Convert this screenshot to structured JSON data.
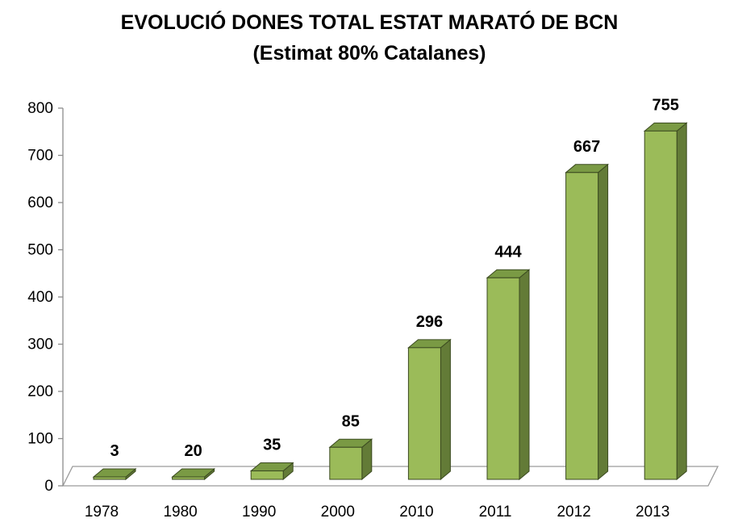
{
  "chart_data": {
    "type": "bar",
    "title": "EVOLUCIÓ DONES TOTAL ESTAT MARATÓ DE BCN",
    "subtitle": "(Estimat 80% Catalanes)",
    "categories": [
      "1978",
      "1980",
      "1990",
      "2000",
      "2010",
      "2011",
      "2012",
      "2013"
    ],
    "values": [
      3,
      20,
      35,
      85,
      296,
      444,
      667,
      755
    ],
    "data_labels": [
      "3",
      "20",
      "35",
      "85",
      "296",
      "444",
      "667",
      "755"
    ],
    "xlabel": "",
    "ylabel": "",
    "ylim": [
      0,
      800
    ],
    "yticks": [
      "0",
      "100",
      "200",
      "300",
      "400",
      "500",
      "600",
      "700",
      "800"
    ],
    "grid": false,
    "legend": "none",
    "style": "3d-column",
    "colors": {
      "front": "#9BBB59",
      "side": "#637B37",
      "top": "#7A9A44",
      "outline": "#3B4A20"
    }
  }
}
